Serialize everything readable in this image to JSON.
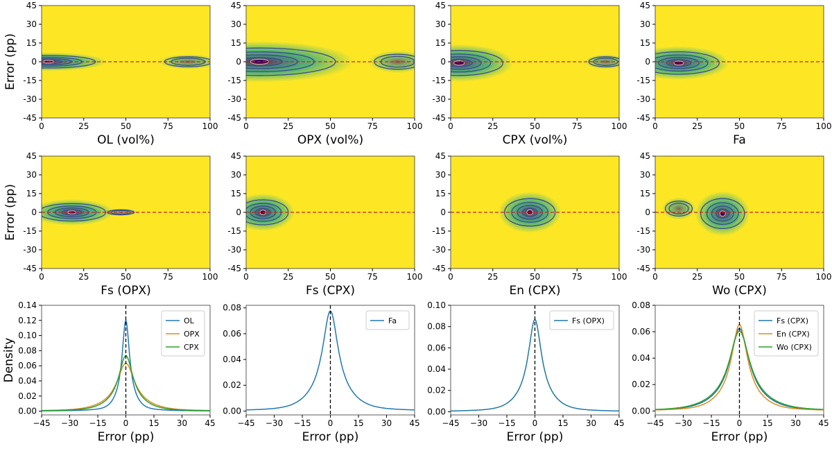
{
  "colors": {
    "background": "#fde725",
    "contour": "#3b4a8a",
    "zero_line": "#cc2222",
    "density_blob": "#27a98a",
    "peak": "#440154",
    "frame": "#000000",
    "legend_blue": "#1f77b4",
    "legend_orange": "#e08a1e",
    "legend_green": "#2ca02c",
    "legend_teal": "#1f77a0"
  },
  "chart_data": [
    {
      "type": "heatmap",
      "id": "OL",
      "xlabel": "OL (vol%)",
      "ylabel": "Error (pp)",
      "xlim": [
        0,
        100
      ],
      "ylim": [
        -45,
        45
      ],
      "xticks": [
        0,
        25,
        50,
        75,
        100
      ],
      "yticks": [
        45,
        30,
        15,
        0,
        -15,
        -30,
        -45
      ],
      "zero_line": true,
      "clusters": [
        {
          "cx": 4,
          "cy": 0,
          "rx": 28,
          "ry": 5,
          "peak": true
        },
        {
          "cx": 87,
          "cy": 0,
          "rx": 14,
          "ry": 4,
          "peak": false
        }
      ]
    },
    {
      "type": "heatmap",
      "id": "OPX",
      "xlabel": "OPX (vol%)",
      "ylabel": "",
      "xlim": [
        0,
        100
      ],
      "ylim": [
        -45,
        45
      ],
      "xticks": [
        0,
        25,
        50,
        75,
        100
      ],
      "yticks": [
        45,
        30,
        15,
        0,
        -15,
        -30,
        -45
      ],
      "zero_line": true,
      "clusters": [
        {
          "cx": 8,
          "cy": 0,
          "rx": 45,
          "ry": 11,
          "peak": true
        },
        {
          "cx": 90,
          "cy": 0,
          "rx": 14,
          "ry": 6,
          "peak": false
        }
      ]
    },
    {
      "type": "heatmap",
      "id": "CPX",
      "xlabel": "CPX (vol%)",
      "ylabel": "",
      "xlim": [
        0,
        100
      ],
      "ylim": [
        -45,
        45
      ],
      "xticks": [
        0,
        25,
        50,
        75,
        100
      ],
      "yticks": [
        45,
        30,
        15,
        0,
        -15,
        -30,
        -45
      ],
      "zero_line": true,
      "clusters": [
        {
          "cx": 5,
          "cy": -1,
          "rx": 26,
          "ry": 10,
          "peak": true
        },
        {
          "cx": 92,
          "cy": 0,
          "rx": 10,
          "ry": 4,
          "peak": false
        }
      ]
    },
    {
      "type": "heatmap",
      "id": "Fa",
      "xlabel": "Fa",
      "ylabel": "",
      "xlim": [
        0,
        100
      ],
      "ylim": [
        -45,
        45
      ],
      "xticks": [
        0,
        25,
        50,
        75,
        100
      ],
      "yticks": [
        45,
        30,
        15,
        0,
        -15,
        -30,
        -45
      ],
      "zero_line": true,
      "clusters": [
        {
          "cx": 14,
          "cy": -1,
          "rx": 24,
          "ry": 9,
          "peak": true
        }
      ]
    },
    {
      "type": "heatmap",
      "id": "FsOPX",
      "xlabel": "Fs (OPX)",
      "ylabel": "Error (pp)",
      "xlim": [
        0,
        100
      ],
      "ylim": [
        -45,
        45
      ],
      "xticks": [
        0,
        25,
        50,
        75,
        100
      ],
      "yticks": [
        45,
        30,
        15,
        0,
        -15,
        -30,
        -45
      ],
      "zero_line": true,
      "clusters": [
        {
          "cx": 18,
          "cy": 0,
          "rx": 20,
          "ry": 7,
          "peak": true
        },
        {
          "cx": 47,
          "cy": 0,
          "rx": 8,
          "ry": 2,
          "peak": false
        }
      ]
    },
    {
      "type": "heatmap",
      "id": "FsCPX",
      "xlabel": "Fs (CPX)",
      "ylabel": "",
      "xlim": [
        0,
        100
      ],
      "ylim": [
        -45,
        45
      ],
      "xticks": [
        0,
        25,
        50,
        75,
        100
      ],
      "yticks": [
        45,
        30,
        15,
        0,
        -15,
        -30,
        -45
      ],
      "zero_line": true,
      "clusters": [
        {
          "cx": 10,
          "cy": 0,
          "rx": 15,
          "ry": 10,
          "peak": true
        }
      ]
    },
    {
      "type": "heatmap",
      "id": "EnCPX",
      "xlabel": "En (CPX)",
      "ylabel": "",
      "xlim": [
        0,
        100
      ],
      "ylim": [
        -45,
        45
      ],
      "xticks": [
        0,
        25,
        50,
        75,
        100
      ],
      "yticks": [
        45,
        30,
        15,
        0,
        -15,
        -30,
        -45
      ],
      "zero_line": true,
      "clusters": [
        {
          "cx": 47,
          "cy": 0,
          "rx": 15,
          "ry": 11,
          "peak": true
        }
      ]
    },
    {
      "type": "heatmap",
      "id": "WoCPX",
      "xlabel": "Wo (CPX)",
      "ylabel": "",
      "xlim": [
        0,
        100
      ],
      "ylim": [
        -45,
        45
      ],
      "xticks": [
        0,
        25,
        50,
        75,
        100
      ],
      "yticks": [
        45,
        30,
        15,
        0,
        -15,
        -30,
        -45
      ],
      "zero_line": true,
      "clusters": [
        {
          "cx": 14,
          "cy": 3,
          "rx": 8,
          "ry": 6,
          "peak": false
        },
        {
          "cx": 40,
          "cy": -1,
          "rx": 13,
          "ry": 12,
          "peak": true
        }
      ]
    },
    {
      "type": "line",
      "id": "dens1",
      "xlabel": "Error (pp)",
      "ylabel": "Density",
      "xlim": [
        -45,
        45
      ],
      "ylim": [
        -0.005,
        0.14
      ],
      "xticks": [
        -45,
        -30,
        -15,
        0,
        15,
        30,
        45
      ],
      "yticks": [
        0.0,
        0.02,
        0.04,
        0.06,
        0.08,
        0.1,
        0.12,
        0.14
      ],
      "ytick_labels": [
        "0.00",
        "0.02",
        "0.04",
        "0.06",
        "0.08",
        "0.10",
        "0.12",
        "0.14"
      ],
      "series": [
        {
          "name": "OL",
          "color": "#1f77b4",
          "peak": 0.12,
          "width": 2.3
        },
        {
          "name": "OPX",
          "color": "#e08a1e",
          "peak": 0.063,
          "width": 5.5
        },
        {
          "name": "CPX",
          "color": "#2ca02c",
          "peak": 0.073,
          "width": 4.5
        }
      ]
    },
    {
      "type": "line",
      "id": "dens2",
      "xlabel": "Error (pp)",
      "ylabel": "",
      "xlim": [
        -45,
        45
      ],
      "ylim": [
        -0.003,
        0.082
      ],
      "xticks": [
        -45,
        -30,
        -15,
        0,
        15,
        30,
        45
      ],
      "yticks": [
        0.0,
        0.02,
        0.04,
        0.06,
        0.08
      ],
      "ytick_labels": [
        "0.00",
        "0.02",
        "0.04",
        "0.06",
        "0.08"
      ],
      "series": [
        {
          "name": "Fa",
          "color": "#1f77b4",
          "peak": 0.077,
          "width": 5.0
        }
      ]
    },
    {
      "type": "line",
      "id": "dens3",
      "xlabel": "Error (pp)",
      "ylabel": "",
      "xlim": [
        -45,
        45
      ],
      "ylim": [
        -0.003,
        0.1
      ],
      "xticks": [
        -45,
        -30,
        -15,
        0,
        15,
        30,
        45
      ],
      "yticks": [
        0.0,
        0.02,
        0.04,
        0.06,
        0.08,
        0.1
      ],
      "ytick_labels": [
        "0.00",
        "0.02",
        "0.04",
        "0.06",
        "0.08",
        "0.10"
      ],
      "series": [
        {
          "name": "Fs (OPX)",
          "color": "#1f77a0",
          "peak": 0.086,
          "width": 4.2
        }
      ]
    },
    {
      "type": "line",
      "id": "dens4",
      "xlabel": "Error (pp)",
      "ylabel": "",
      "xlim": [
        -45,
        45
      ],
      "ylim": [
        -0.003,
        0.08
      ],
      "xticks": [
        -45,
        -30,
        -15,
        0,
        15,
        30,
        45
      ],
      "yticks": [
        0.0,
        0.02,
        0.04,
        0.06,
        0.08
      ],
      "ytick_labels": [
        "0.00",
        "0.02",
        "0.04",
        "0.06",
        "0.08"
      ],
      "series": [
        {
          "name": "Fs (CPX)",
          "color": "#1f77a0",
          "peak": 0.062,
          "width": 6.0
        },
        {
          "name": "En (CPX)",
          "color": "#e08a1e",
          "peak": 0.065,
          "width": 5.0
        },
        {
          "name": "Wo (CPX)",
          "color": "#2ca02c",
          "peak": 0.06,
          "width": 6.5
        }
      ]
    }
  ]
}
